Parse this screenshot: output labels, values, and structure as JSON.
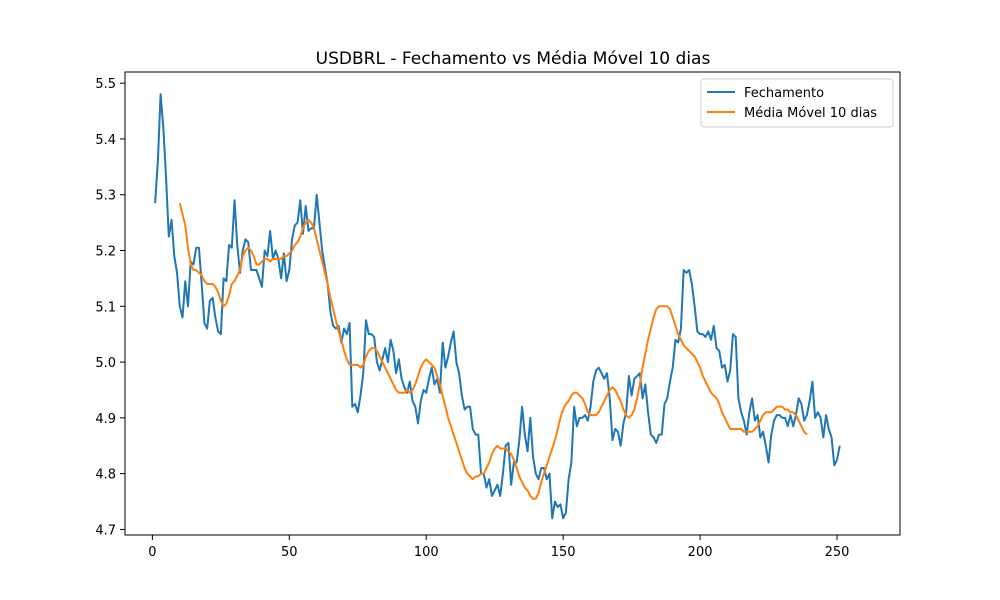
{
  "chart_data": {
    "type": "line",
    "title": "USDBRL - Fechamento vs Média Móvel 10 dias",
    "xlabel": "",
    "ylabel": "",
    "xlim": [
      -10,
      273
    ],
    "ylim": [
      4.69,
      5.52
    ],
    "xticks": [
      0,
      50,
      100,
      150,
      200,
      250
    ],
    "yticks": [
      4.7,
      4.8,
      4.9,
      5.0,
      5.1,
      5.2,
      5.3,
      5.4,
      5.5
    ],
    "grid": false,
    "legend_position": "top-right",
    "series": [
      {
        "name": "Fechamento",
        "color": "#1f77b4",
        "x_start": 1,
        "values": [
          5.285,
          5.36,
          5.48,
          5.42,
          5.33,
          5.225,
          5.255,
          5.19,
          5.16,
          5.1,
          5.08,
          5.145,
          5.1,
          5.18,
          5.175,
          5.205,
          5.205,
          5.14,
          5.07,
          5.06,
          5.11,
          5.115,
          5.08,
          5.055,
          5.05,
          5.15,
          5.145,
          5.21,
          5.205,
          5.29,
          5.21,
          5.16,
          5.2,
          5.22,
          5.215,
          5.165,
          5.165,
          5.165,
          5.15,
          5.135,
          5.2,
          5.19,
          5.235,
          5.185,
          5.2,
          5.185,
          5.15,
          5.195,
          5.145,
          5.165,
          5.22,
          5.245,
          5.25,
          5.29,
          5.23,
          5.28,
          5.235,
          5.24,
          5.24,
          5.3,
          5.25,
          5.2,
          5.17,
          5.14,
          5.09,
          5.065,
          5.06,
          5.065,
          5.035,
          5.06,
          5.05,
          5.07,
          4.92,
          4.925,
          4.91,
          4.94,
          4.98,
          5.075,
          5.05,
          5.05,
          5.045,
          5.0,
          4.985,
          5.005,
          5.025,
          5.0,
          5.04,
          5.02,
          4.98,
          5.005,
          4.97,
          4.955,
          4.945,
          4.965,
          4.93,
          4.92,
          4.89,
          4.93,
          4.95,
          4.945,
          4.97,
          4.99,
          4.96,
          4.97,
          4.945,
          5.035,
          4.99,
          5.01,
          5.035,
          5.055,
          5.0,
          4.98,
          4.94,
          4.915,
          4.92,
          4.92,
          4.88,
          4.87,
          4.87,
          4.8,
          4.8,
          4.775,
          4.79,
          4.76,
          4.77,
          4.78,
          4.76,
          4.8,
          4.85,
          4.855,
          4.78,
          4.82,
          4.82,
          4.86,
          4.92,
          4.87,
          4.84,
          4.9,
          4.83,
          4.8,
          4.79,
          4.81,
          4.81,
          4.79,
          4.8,
          4.72,
          4.75,
          4.74,
          4.745,
          4.72,
          4.73,
          4.79,
          4.82,
          4.92,
          4.885,
          4.9,
          4.9,
          4.905,
          4.895,
          4.92,
          4.965,
          4.985,
          4.99,
          4.98,
          4.97,
          4.98,
          4.935,
          4.86,
          4.88,
          4.875,
          4.85,
          4.89,
          4.91,
          4.975,
          4.94,
          4.97,
          4.975,
          4.98,
          4.935,
          4.96,
          4.91,
          4.87,
          4.865,
          4.855,
          4.87,
          4.87,
          4.925,
          4.935,
          4.965,
          4.99,
          5.04,
          5.035,
          5.06,
          5.165,
          5.16,
          5.165,
          5.14,
          5.1,
          5.055,
          5.05,
          5.05,
          5.045,
          5.055,
          5.04,
          5.065,
          5.025,
          5.02,
          4.99,
          4.995,
          4.965,
          4.985,
          5.05,
          5.045,
          4.935,
          4.91,
          4.895,
          4.87,
          4.91,
          4.935,
          4.895,
          4.905,
          4.865,
          4.875,
          4.85,
          4.82,
          4.87,
          4.895,
          4.905,
          4.905,
          4.9,
          4.9,
          4.885,
          4.905,
          4.885,
          4.905,
          4.935,
          4.925,
          4.895,
          4.905,
          4.93,
          4.965,
          4.9,
          4.91,
          4.9,
          4.865,
          4.905,
          4.88,
          4.865,
          4.815,
          4.825,
          4.85
        ]
      },
      {
        "name": "Média Móvel 10 dias",
        "color": "#ff7f0e",
        "x_start": 10,
        "values": [
          5.285,
          5.265,
          5.245,
          5.205,
          5.175,
          5.165,
          5.165,
          5.16,
          5.155,
          5.145,
          5.14,
          5.14,
          5.14,
          5.135,
          5.125,
          5.11,
          5.1,
          5.105,
          5.12,
          5.14,
          5.145,
          5.155,
          5.165,
          5.19,
          5.2,
          5.205,
          5.2,
          5.19,
          5.175,
          5.175,
          5.18,
          5.185,
          5.185,
          5.18,
          5.185,
          5.185,
          5.185,
          5.185,
          5.19,
          5.19,
          5.195,
          5.2,
          5.21,
          5.215,
          5.225,
          5.24,
          5.25,
          5.255,
          5.25,
          5.24,
          5.22,
          5.2,
          5.18,
          5.16,
          5.14,
          5.115,
          5.095,
          5.075,
          5.055,
          5.04,
          5.02,
          5.005,
          4.995,
          4.995,
          4.995,
          4.995,
          4.99,
          4.995,
          5.01,
          5.02,
          5.025,
          5.025,
          5.02,
          5.01,
          5.0,
          4.99,
          4.98,
          4.97,
          4.96,
          4.95,
          4.945,
          4.945,
          4.945,
          4.95,
          4.945,
          4.95,
          4.96,
          4.975,
          4.99,
          5.0,
          5.005,
          5.0,
          4.995,
          4.99,
          4.975,
          4.96,
          4.94,
          4.92,
          4.9,
          4.885,
          4.87,
          4.855,
          4.84,
          4.825,
          4.81,
          4.8,
          4.795,
          4.79,
          4.795,
          4.795,
          4.8,
          4.8,
          4.81,
          4.82,
          4.835,
          4.845,
          4.85,
          4.845,
          4.845,
          4.845,
          4.84,
          4.835,
          4.825,
          4.81,
          4.795,
          4.785,
          4.775,
          4.77,
          4.76,
          4.755,
          4.755,
          4.765,
          4.785,
          4.8,
          4.815,
          4.83,
          4.845,
          4.86,
          4.88,
          4.9,
          4.915,
          4.925,
          4.93,
          4.94,
          4.945,
          4.945,
          4.94,
          4.935,
          4.925,
          4.91,
          4.905,
          4.905,
          4.905,
          4.91,
          4.92,
          4.93,
          4.94,
          4.95,
          4.955,
          4.95,
          4.94,
          4.93,
          4.915,
          4.905,
          4.9,
          4.905,
          4.915,
          4.935,
          4.96,
          4.99,
          5.015,
          5.04,
          5.06,
          5.08,
          5.095,
          5.1,
          5.1,
          5.1,
          5.1,
          5.095,
          5.08,
          5.065,
          5.05,
          5.04,
          5.03,
          5.025,
          5.02,
          5.015,
          5.01,
          5.0,
          4.99,
          4.975,
          4.965,
          4.955,
          4.945,
          4.94,
          4.935,
          4.925,
          4.91,
          4.9,
          4.89,
          4.88,
          4.88,
          4.88,
          4.88,
          4.88,
          4.875,
          4.875,
          4.875,
          4.875,
          4.88,
          4.885,
          4.895,
          4.905,
          4.91,
          4.91,
          4.91,
          4.915,
          4.92,
          4.92,
          4.92,
          4.915,
          4.915,
          4.91,
          4.91,
          4.905,
          4.895,
          4.885,
          4.875,
          4.87
        ]
      }
    ]
  }
}
